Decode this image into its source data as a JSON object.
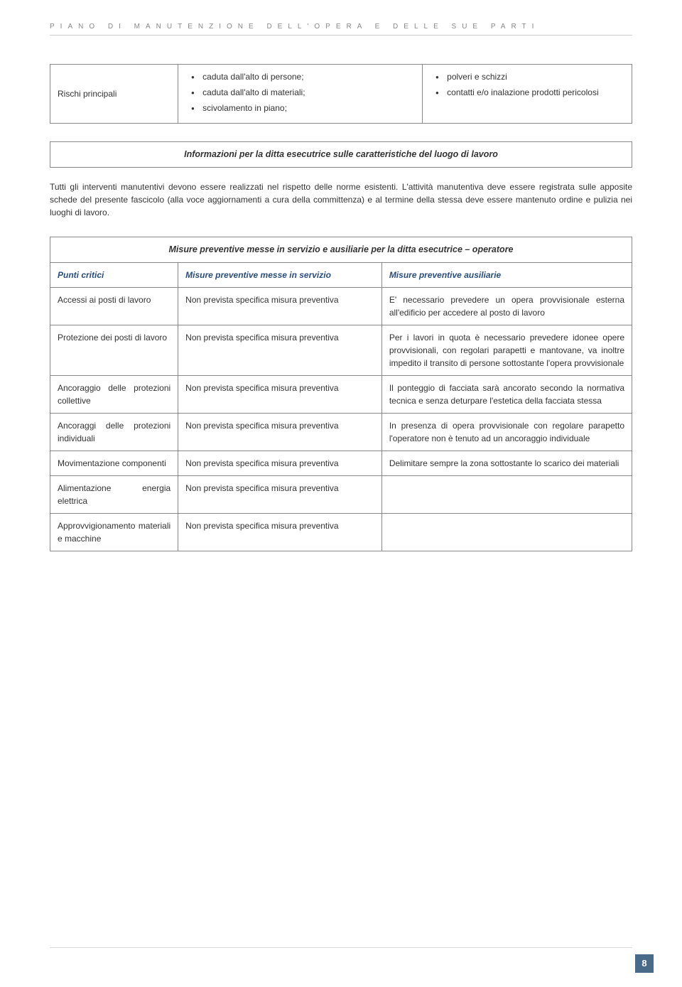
{
  "header_text": "PIANO DI MANUTENZIONE DELL'OPERA E DELLE SUE PARTI",
  "top_table": {
    "col1": "Rischi principali",
    "col2_items": [
      "caduta dall'alto di persone;",
      "caduta dall'alto di materiali;",
      "scivolamento in piano;"
    ],
    "col3_items": [
      "polveri e schizzi",
      "contatti e/o inalazione prodotti pericolosi"
    ]
  },
  "info_box": "Informazioni per la ditta esecutrice sulle caratteristiche del luogo di lavoro",
  "body_p1": "Tutti gli interventi manutentivi devono essere realizzati nel rispetto delle norme esistenti. L'attività manutentiva deve essere registrata sulle apposite schede del presente fascicolo (alla voce aggiornamenti a cura della committenza) e al termine della stessa deve essere mantenuto ordine e pulizia nei luoghi di lavoro.",
  "main_table": {
    "title": "Misure preventive messe in servizio e ausiliarie per la ditta esecutrice – operatore",
    "header": {
      "c1": "Punti critici",
      "c2": "Misure preventive messe in servizio",
      "c3": "Misure preventive ausiliarie"
    },
    "rows": [
      {
        "c1": "Accessi ai posti di lavoro",
        "c2": "Non prevista specifica misura preventiva",
        "c3": "E' necessario prevedere un opera provvisionale esterna all'edificio per accedere al posto di lavoro"
      },
      {
        "c1": "Protezione dei posti di lavoro",
        "c2": "Non prevista specifica misura preventiva",
        "c3": "Per i lavori in quota è necessario prevedere idonee opere provvisionali, con regolari parapetti e mantovane, va inoltre impedito il transito di persone sottostante l'opera provvisionale"
      },
      {
        "c1": "Ancoraggio delle protezioni collettive",
        "c2": "Non prevista specifica misura preventiva",
        "c3": "Il ponteggio di facciata sarà ancorato secondo la normativa tecnica e senza deturpare l'estetica della facciata stessa"
      },
      {
        "c1": "Ancoraggi delle protezioni individuali",
        "c2": "Non prevista specifica misura preventiva",
        "c3": "In presenza di opera provvisionale con regolare parapetto l'operatore non è tenuto ad un ancoraggio individuale"
      },
      {
        "c1": "Movimentazione componenti",
        "c2": "Non prevista specifica misura preventiva",
        "c3": "Delimitare sempre la zona sottostante lo scarico dei materiali"
      },
      {
        "c1": "Alimentazione energia elettrica",
        "c2": "Non prevista specifica misura preventiva",
        "c3": ""
      },
      {
        "c1": "Approvvigionamento materiali e macchine",
        "c2": "Non prevista specifica misura preventiva",
        "c3": ""
      }
    ],
    "col_widths": [
      "22%",
      "35%",
      "43%"
    ]
  },
  "page_number": "8",
  "colors": {
    "header_text": "#888888",
    "border": "#888888",
    "table_header_text": "#2a4d7a",
    "page_badge_bg": "#4a6a8a",
    "page_badge_fg": "#ffffff"
  }
}
